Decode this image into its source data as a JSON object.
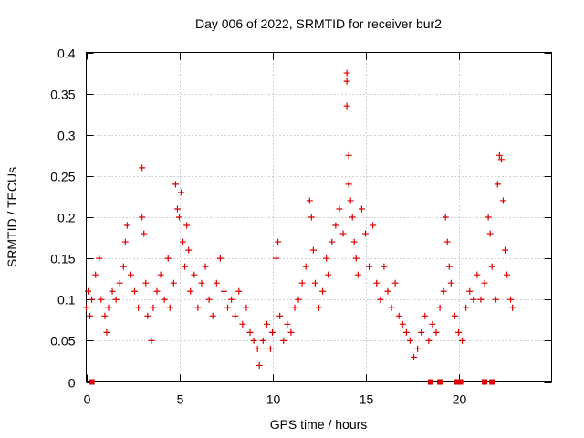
{
  "chart_data": {
    "type": "scatter",
    "title": "Day 006 of 2022, SRMTID for receiver bur2",
    "xlabel": "GPS time / hours",
    "ylabel": "SRMTID / TECUs",
    "xlim": [
      0,
      25
    ],
    "ylim": [
      0,
      0.4
    ],
    "xticks": [
      0,
      5,
      10,
      15,
      20
    ],
    "yticks": [
      0,
      0.05,
      0.1,
      0.15,
      0.2,
      0.25,
      0.3,
      0.35,
      0.4
    ],
    "ytick_labels": [
      "0",
      "0.05",
      "0.1",
      "0.15",
      "0.2",
      "0.25",
      "0.3",
      "0.35",
      "0.4"
    ],
    "grid": true,
    "marker": "plus",
    "color": "#dd0000",
    "series": [
      {
        "name": "SRMTID",
        "points": [
          [
            0.0,
            0.09
          ],
          [
            0.1,
            0.11
          ],
          [
            0.2,
            0.08
          ],
          [
            0.3,
            0.1
          ],
          [
            0.5,
            0.13
          ],
          [
            0.7,
            0.15
          ],
          [
            0.8,
            0.1
          ],
          [
            1.0,
            0.08
          ],
          [
            1.1,
            0.06
          ],
          [
            1.2,
            0.09
          ],
          [
            1.4,
            0.11
          ],
          [
            1.6,
            0.1
          ],
          [
            1.8,
            0.12
          ],
          [
            2.0,
            0.14
          ],
          [
            2.1,
            0.17
          ],
          [
            2.2,
            0.19
          ],
          [
            2.4,
            0.13
          ],
          [
            2.6,
            0.11
          ],
          [
            2.8,
            0.09
          ],
          [
            3.0,
            0.26
          ],
          [
            3.0,
            0.2
          ],
          [
            3.1,
            0.18
          ],
          [
            3.2,
            0.12
          ],
          [
            3.3,
            0.08
          ],
          [
            3.5,
            0.05
          ],
          [
            3.6,
            0.09
          ],
          [
            3.8,
            0.11
          ],
          [
            4.0,
            0.13
          ],
          [
            4.2,
            0.1
          ],
          [
            4.4,
            0.15
          ],
          [
            4.5,
            0.09
          ],
          [
            4.7,
            0.12
          ],
          [
            4.8,
            0.24
          ],
          [
            4.9,
            0.21
          ],
          [
            5.0,
            0.2
          ],
          [
            5.1,
            0.23
          ],
          [
            5.2,
            0.17
          ],
          [
            5.3,
            0.14
          ],
          [
            5.4,
            0.19
          ],
          [
            5.5,
            0.16
          ],
          [
            5.6,
            0.11
          ],
          [
            5.8,
            0.13
          ],
          [
            6.0,
            0.09
          ],
          [
            6.2,
            0.12
          ],
          [
            6.4,
            0.14
          ],
          [
            6.6,
            0.1
          ],
          [
            6.8,
            0.08
          ],
          [
            7.0,
            0.12
          ],
          [
            7.2,
            0.15
          ],
          [
            7.4,
            0.11
          ],
          [
            7.6,
            0.09
          ],
          [
            7.8,
            0.1
          ],
          [
            8.0,
            0.08
          ],
          [
            8.2,
            0.11
          ],
          [
            8.4,
            0.07
          ],
          [
            8.6,
            0.09
          ],
          [
            8.8,
            0.06
          ],
          [
            9.0,
            0.05
          ],
          [
            9.2,
            0.04
          ],
          [
            9.3,
            0.02
          ],
          [
            9.5,
            0.05
          ],
          [
            9.7,
            0.07
          ],
          [
            9.9,
            0.04
          ],
          [
            10.0,
            0.06
          ],
          [
            10.2,
            0.15
          ],
          [
            10.3,
            0.17
          ],
          [
            10.4,
            0.08
          ],
          [
            10.6,
            0.05
          ],
          [
            10.8,
            0.07
          ],
          [
            11.0,
            0.06
          ],
          [
            11.2,
            0.09
          ],
          [
            11.4,
            0.1
          ],
          [
            11.6,
            0.12
          ],
          [
            11.8,
            0.14
          ],
          [
            12.0,
            0.22
          ],
          [
            12.1,
            0.2
          ],
          [
            12.2,
            0.16
          ],
          [
            12.3,
            0.12
          ],
          [
            12.5,
            0.09
          ],
          [
            12.7,
            0.11
          ],
          [
            12.9,
            0.15
          ],
          [
            13.0,
            0.13
          ],
          [
            13.2,
            0.17
          ],
          [
            13.4,
            0.19
          ],
          [
            13.6,
            0.21
          ],
          [
            13.8,
            0.18
          ],
          [
            14.0,
            0.375
          ],
          [
            14.0,
            0.365
          ],
          [
            14.0,
            0.335
          ],
          [
            14.1,
            0.275
          ],
          [
            14.1,
            0.24
          ],
          [
            14.2,
            0.22
          ],
          [
            14.3,
            0.2
          ],
          [
            14.4,
            0.17
          ],
          [
            14.5,
            0.15
          ],
          [
            14.6,
            0.13
          ],
          [
            14.8,
            0.21
          ],
          [
            15.0,
            0.18
          ],
          [
            15.2,
            0.14
          ],
          [
            15.4,
            0.19
          ],
          [
            15.6,
            0.12
          ],
          [
            15.8,
            0.1
          ],
          [
            16.0,
            0.14
          ],
          [
            16.2,
            0.11
          ],
          [
            16.4,
            0.09
          ],
          [
            16.6,
            0.12
          ],
          [
            16.8,
            0.08
          ],
          [
            17.0,
            0.07
          ],
          [
            17.2,
            0.06
          ],
          [
            17.4,
            0.05
          ],
          [
            17.6,
            0.03
          ],
          [
            17.8,
            0.04
          ],
          [
            18.0,
            0.06
          ],
          [
            18.2,
            0.08
          ],
          [
            18.4,
            0.05
          ],
          [
            18.6,
            0.07
          ],
          [
            18.8,
            0.06
          ],
          [
            19.0,
            0.09
          ],
          [
            19.2,
            0.11
          ],
          [
            19.3,
            0.2
          ],
          [
            19.4,
            0.17
          ],
          [
            19.5,
            0.14
          ],
          [
            19.6,
            0.12
          ],
          [
            19.8,
            0.08
          ],
          [
            20.0,
            0.06
          ],
          [
            20.2,
            0.05
          ],
          [
            20.4,
            0.09
          ],
          [
            20.6,
            0.11
          ],
          [
            20.8,
            0.1
          ],
          [
            21.0,
            0.13
          ],
          [
            21.2,
            0.1
          ],
          [
            21.4,
            0.12
          ],
          [
            21.6,
            0.2
          ],
          [
            21.7,
            0.18
          ],
          [
            21.8,
            0.14
          ],
          [
            22.0,
            0.1
          ],
          [
            22.1,
            0.24
          ],
          [
            22.2,
            0.275
          ],
          [
            22.3,
            0.27
          ],
          [
            22.4,
            0.22
          ],
          [
            22.5,
            0.16
          ],
          [
            22.6,
            0.13
          ],
          [
            22.8,
            0.1
          ],
          [
            22.9,
            0.09
          ]
        ]
      }
    ],
    "baseline_markers": [
      0.3,
      18.5,
      19.0,
      19.9,
      20.1,
      21.4,
      21.8
    ]
  }
}
